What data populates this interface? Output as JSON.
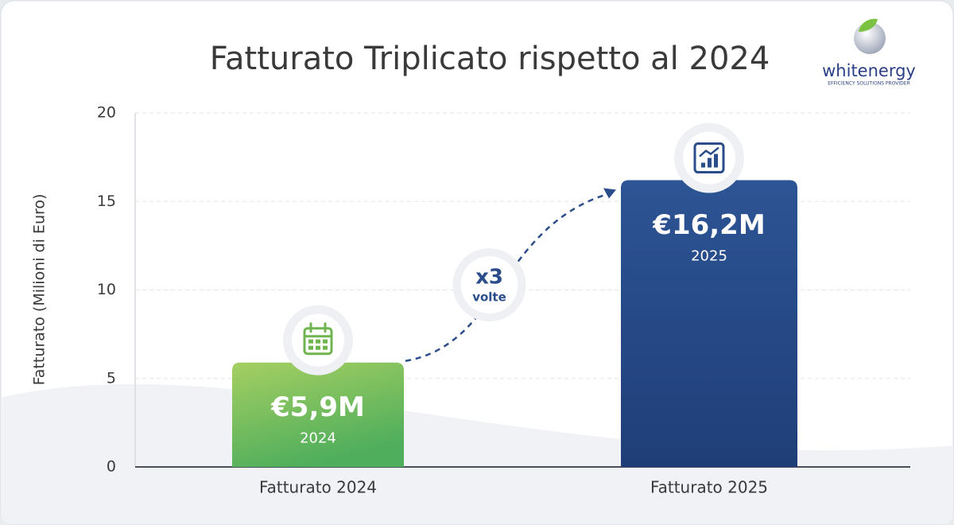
{
  "chart_data": {
    "type": "bar",
    "title": "Fatturato Triplicato rispetto al 2024",
    "y_label": "Fatturato (Milioni di Euro)",
    "categories": [
      "Fatturato 2024",
      "Fatturato 2025"
    ],
    "values": [
      5.9,
      16.2
    ],
    "value_labels": [
      "€5,9M",
      "€16,2M"
    ],
    "bar_labels": [
      "2024",
      "2025"
    ],
    "colors": [
      "#6fb54f",
      "#2b4d8a"
    ],
    "annotation": {
      "text": "x3",
      "subtext": "volte"
    },
    "ylim": [
      0,
      20
    ],
    "yticks": [
      0,
      5,
      10,
      15,
      20
    ],
    "grid": true
  },
  "logo": {
    "name": "whitenergy",
    "tagline": "EFFICIENCY SOLUTIONS PROVIDER"
  }
}
